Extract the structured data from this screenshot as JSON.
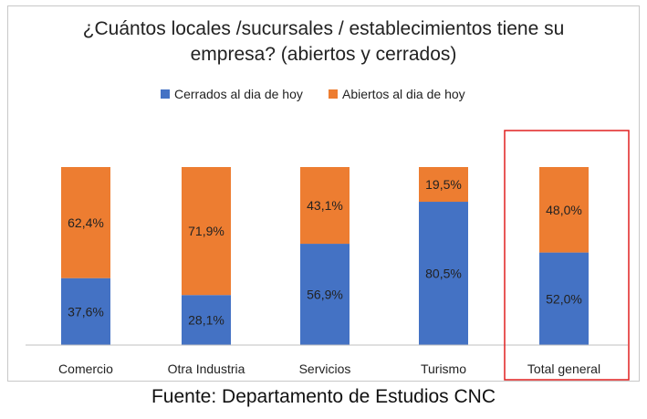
{
  "chart_data": {
    "type": "bar",
    "stacked": true,
    "percent_stacked": true,
    "title_line1": "¿Cuántos locales /sucursales / establecimientos tiene su",
    "title_line2": "empresa? (abiertos y cerrados)",
    "categories": [
      "Comercio",
      "Otra  Industria",
      "Servicios",
      "Turismo",
      "Total general"
    ],
    "series": [
      {
        "name": "Cerrados al dia de hoy",
        "color": "#4472c4",
        "values": [
          37.6,
          28.1,
          56.9,
          80.5,
          52.0
        ],
        "labels": [
          "37,6%",
          "28,1%",
          "56,9%",
          "80,5%",
          "52,0%"
        ]
      },
      {
        "name": "Abiertos al dia de hoy",
        "color": "#ed7d31",
        "values": [
          62.4,
          71.9,
          43.1,
          19.5,
          48.0
        ],
        "labels": [
          "62,4%",
          "71,9%",
          "43,1%",
          "19,5%",
          "48,0%"
        ]
      }
    ],
    "ylim": [
      0,
      100
    ],
    "grid": false,
    "legend_position": "top",
    "highlight": {
      "category": "Total general",
      "color": "#e02020"
    }
  },
  "footer": {
    "source": "Fuente: Departamento de Estudios CNC"
  }
}
